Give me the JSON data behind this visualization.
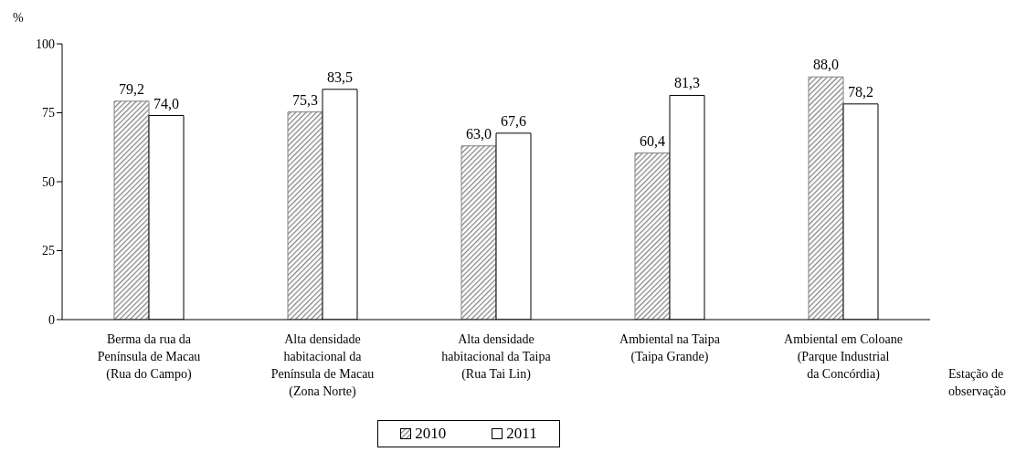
{
  "chart_data": {
    "type": "bar",
    "ylabel": "%",
    "xlabel": "Estação de\nobservação",
    "categories": [
      "Berma da rua da\nPenínsula de Macau\n(Rua do Campo)",
      "Alta densidade\nhabitacional da\nPenínsula de Macau\n(Zona Norte)",
      "Alta densidade\nhabitacional da Taipa\n(Rua Tai Lin)",
      "Ambiental na Taipa\n(Taipa Grande)",
      "Ambiental em Coloane\n(Parque Industrial\nda Concórdia)"
    ],
    "series": [
      {
        "name": "2010",
        "color": "#808080",
        "values": [
          79.2,
          75.3,
          63.0,
          60.4,
          88.0
        ],
        "value_labels": [
          "79,2",
          "75,3",
          "63,0",
          "60,4",
          "88,0"
        ]
      },
      {
        "name": "2011",
        "color": "#ffffff",
        "values": [
          74.0,
          83.5,
          67.6,
          81.3,
          78.2
        ],
        "value_labels": [
          "74,0",
          "83,5",
          "67,6",
          "81,3",
          "78,2"
        ]
      }
    ],
    "ylim": [
      0,
      100
    ],
    "yticks": [
      0,
      25,
      50,
      75,
      100
    ],
    "grid": false,
    "legend": "bottom"
  }
}
